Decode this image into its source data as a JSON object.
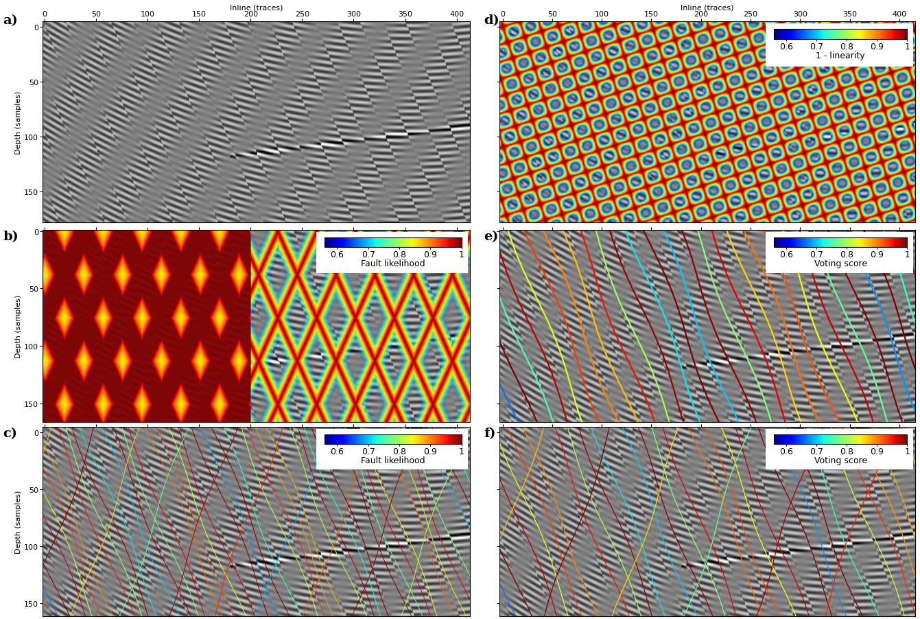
{
  "chart_data": [
    {
      "type": "image",
      "panel": "a)",
      "x_label": "Inline (traces)",
      "y_label": "Depth (samples)",
      "xlim": [
        -2,
        413
      ],
      "ylim": [
        178,
        -5
      ],
      "xticks": [
        0,
        50,
        100,
        150,
        200,
        250,
        300,
        350,
        400
      ],
      "yticks": [
        0,
        50,
        100,
        150
      ],
      "tick_labels": true
    },
    {
      "type": "image",
      "panel": "b)",
      "y_label": "Depth (samples)",
      "xlim": [
        -2,
        413
      ],
      "ylim": [
        166,
        -1
      ],
      "xticks": [
        0,
        50,
        100,
        150,
        200,
        250,
        300,
        350,
        400
      ],
      "yticks": [
        0,
        50,
        100,
        150
      ],
      "tick_labels": "y",
      "colorbar": {
        "label": "Fault likelihood",
        "range": [
          0.56,
          1
        ],
        "ticks": [
          0.6,
          0.7,
          0.8,
          0.9,
          1
        ]
      }
    },
    {
      "type": "image",
      "panel": "c)",
      "y_label": "Depth (samples)",
      "xlim": [
        -2,
        413
      ],
      "ylim": [
        162,
        -5
      ],
      "xticks": [
        0,
        50,
        100,
        150,
        200,
        250,
        300,
        350,
        400
      ],
      "yticks": [
        0,
        50,
        100,
        150
      ],
      "tick_labels": "y",
      "colorbar": {
        "label": "Fault likelihood",
        "range": [
          0.56,
          1
        ],
        "ticks": [
          0.6,
          0.7,
          0.8,
          0.9,
          1
        ]
      }
    },
    {
      "type": "image",
      "panel": "d)",
      "x_label": "Inline (traces)",
      "xlim": [
        -3,
        416
      ],
      "ylim": [
        178,
        -5
      ],
      "xticks": [
        0,
        50,
        100,
        150,
        200,
        250,
        300,
        350,
        400
      ],
      "yticks": [
        0,
        50,
        100,
        150
      ],
      "tick_labels": "x",
      "colorbar": {
        "label": "1 - linearity",
        "range": [
          0.56,
          1
        ],
        "ticks": [
          0.6,
          0.7,
          0.8,
          0.9,
          1
        ]
      }
    },
    {
      "type": "image",
      "panel": "e)",
      "xlim": [
        -3,
        416
      ],
      "ylim": [
        166,
        -1
      ],
      "xticks": [
        0,
        50,
        100,
        150,
        200,
        250,
        300,
        350,
        400
      ],
      "yticks": [
        0,
        50,
        100,
        150
      ],
      "tick_labels": false,
      "colorbar": {
        "label": "Voting score",
        "range": [
          0.56,
          1
        ],
        "ticks": [
          0.6,
          0.7,
          0.8,
          0.9,
          1
        ]
      }
    },
    {
      "type": "image",
      "panel": "f)",
      "xlim": [
        -3,
        416
      ],
      "ylim": [
        162,
        -5
      ],
      "xticks": [
        0,
        50,
        100,
        150,
        200,
        250,
        300,
        350,
        400
      ],
      "yticks": [
        0,
        50,
        100,
        150
      ],
      "tick_labels": false,
      "colorbar": {
        "label": "Voting score",
        "range": [
          0.56,
          1
        ],
        "ticks": [
          0.6,
          0.7,
          0.8,
          0.9,
          1
        ]
      }
    }
  ]
}
